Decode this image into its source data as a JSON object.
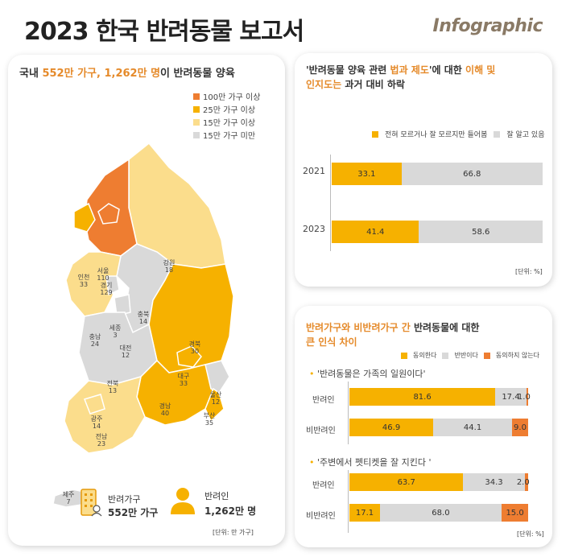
{
  "header": {
    "title": "2023 한국 반려동물 보고서",
    "brand": "Infographic"
  },
  "left_panel": {
    "title_pre": "국내 ",
    "title_hl": "552만 가구, 1,262만 명",
    "title_post": "이 반려동물 양육",
    "legend": [
      {
        "label": "100만 가구 이상",
        "color": "#ee7d31"
      },
      {
        "label": "25만 가구 이상",
        "color": "#f6b100"
      },
      {
        "label": "15만 가구 이상",
        "color": "#fbdd8c"
      },
      {
        "label": "15만 가구 미만",
        "color": "#d9d9d9"
      }
    ],
    "regions": [
      {
        "name": "서울",
        "value": "110"
      },
      {
        "name": "인천",
        "value": "33"
      },
      {
        "name": "경기",
        "value": "129"
      },
      {
        "name": "강원",
        "value": "18"
      },
      {
        "name": "충북",
        "value": "14"
      },
      {
        "name": "세종",
        "value": "3"
      },
      {
        "name": "충남",
        "value": "24"
      },
      {
        "name": "대전",
        "value": "12"
      },
      {
        "name": "경북",
        "value": "30"
      },
      {
        "name": "대구",
        "value": "33"
      },
      {
        "name": "전북",
        "value": "13"
      },
      {
        "name": "울산",
        "value": "12"
      },
      {
        "name": "경남",
        "value": "40"
      },
      {
        "name": "부산",
        "value": "35"
      },
      {
        "name": "광주",
        "value": "14"
      },
      {
        "name": "전남",
        "value": "23"
      },
      {
        "name": "제주",
        "value": "7"
      }
    ],
    "summary": {
      "households_label": "반려가구",
      "households_value": "552만 가구",
      "people_label": "반려인",
      "people_value": "1,262만 명"
    },
    "unit": "[단위: 만 가구]"
  },
  "chart_data": [
    {
      "type": "bar",
      "orientation": "horizontal-stacked-100",
      "title": "'반려동물 양육 관련 법과 제도'에 대한 이해 및 인지도는 과거 대비 하락",
      "categories": [
        "2021",
        "2023"
      ],
      "series": [
        {
          "name": "전혀 모르거나 잘 모르지만 들어봄",
          "color": "#f6b100",
          "values": [
            33.1,
            41.4
          ]
        },
        {
          "name": "잘 알고 있음",
          "color": "#d9d9d9",
          "values": [
            66.8,
            58.6
          ]
        }
      ],
      "labels": [
        [
          "33.1",
          "66.8"
        ],
        [
          "41.4",
          "58.6"
        ]
      ],
      "unit": "[단위: %]"
    },
    {
      "type": "bar",
      "orientation": "horizontal-stacked-100",
      "title": "반려가구와 비반려가구 간 반려동물에 대한 큰 인식 차이",
      "series_legend": [
        {
          "name": "동의한다",
          "color": "#f6b100"
        },
        {
          "name": "반반이다",
          "color": "#d9d9d9"
        },
        {
          "name": "동의하지 않는다",
          "color": "#ee7d31"
        }
      ],
      "groups": [
        {
          "question": "'반려동물은 가족의 일원이다'",
          "rows": [
            {
              "name": "반려인",
              "values": [
                81.6,
                17.4,
                1.0
              ],
              "labels": [
                "81.6",
                "17.4",
                "1.0"
              ]
            },
            {
              "name": "비반려인",
              "values": [
                46.9,
                44.1,
                9.0
              ],
              "labels": [
                "46.9",
                "44.1",
                "9.0"
              ]
            }
          ]
        },
        {
          "question": "'주변에서 펫티켓을 잘 지킨다 '",
          "rows": [
            {
              "name": "반려인",
              "values": [
                63.7,
                34.3,
                2.0
              ],
              "labels": [
                "63.7",
                "34.3",
                "2.0"
              ]
            },
            {
              "name": "비반려인",
              "values": [
                17.1,
                68.0,
                15.0
              ],
              "labels": [
                "17.1",
                "68.0",
                "15.0"
              ]
            }
          ]
        }
      ],
      "unit": "[단위: %]"
    }
  ],
  "rt_panel": {
    "title_l1_a": "'반려동물 양육 관련 ",
    "title_l1_b": "법과 제도",
    "title_l1_c": "'에 대한 ",
    "title_l1_d": "이해 및",
    "title_l2_a": "인지도는",
    "title_l2_b": " 과거 대비 하락"
  },
  "rb_panel": {
    "title_l1_a": "반려가구와 비반려가구 간",
    "title_l1_b": " 반려동물에 대한",
    "title_l2": "큰 인식 차이"
  }
}
